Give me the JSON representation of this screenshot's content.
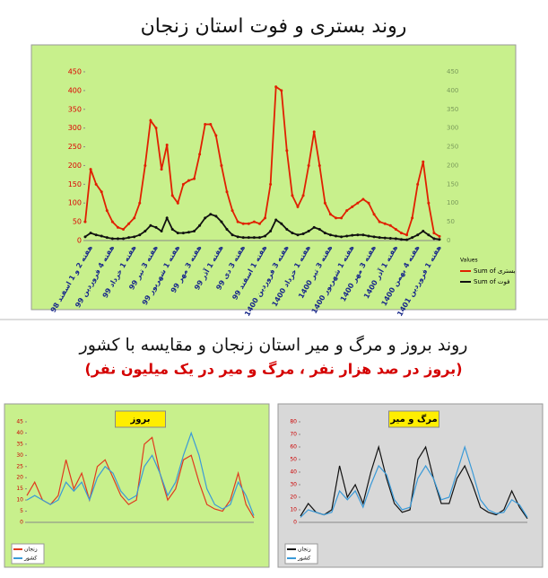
{
  "header": {
    "title": "روند بستری و فوت استان زنجان"
  },
  "section": {
    "title": "روند بروز و مرگ و میر استان زنجان و مقایسه با کشور",
    "subtitle": "(بروز در صد هزار نفر ، مرگ و میر در یک میلیون نفر)"
  },
  "chart_data": [
    {
      "type": "line",
      "background": "#c8f08c",
      "legend_title": "Values",
      "categories": [
        null,
        "هفته 2 و 1 اسفند 98",
        null,
        null,
        null,
        "هفته 4 فروردین 99",
        null,
        null,
        null,
        "هفته 1 خرداد 99",
        null,
        null,
        null,
        "هفته 3 تیر 99",
        null,
        null,
        null,
        "هفته 1 شهریور 99",
        null,
        null,
        null,
        "هفته 3 مهر 99",
        null,
        null,
        null,
        "هفته 1 آذر 99",
        null,
        null,
        null,
        "هفته 3 دی 99",
        null,
        null,
        null,
        "هفته 1 اسفند 99",
        null,
        null,
        null,
        "هفته 3 فروردین 1400",
        null,
        null,
        null,
        "هفته 1 خرداد 1400",
        null,
        null,
        null,
        "هفته 3 تیر 1400",
        null,
        null,
        null,
        "هفته 1 شهریور 1400",
        null,
        null,
        null,
        "هفته 3 مهر 1400",
        null,
        null,
        null,
        "هفته 1 آذر 1400",
        null,
        null,
        null,
        "هفته 4 بهمن 1400",
        null,
        null,
        null,
        "هفته 1 فروردین 1401"
      ],
      "ylim": [
        0,
        450
      ],
      "yticks": [
        0,
        50,
        100,
        150,
        200,
        250,
        300,
        350,
        400,
        450
      ],
      "y2lim": [
        0,
        450
      ],
      "y2ticks": [
        0,
        50,
        100,
        150,
        200,
        250,
        300,
        350,
        400,
        450
      ],
      "series": [
        {
          "name": "Sum of بستری",
          "color": "#e02000",
          "values": [
            50,
            190,
            150,
            130,
            80,
            50,
            35,
            30,
            45,
            60,
            100,
            200,
            320,
            300,
            190,
            255,
            120,
            100,
            150,
            160,
            165,
            230,
            310,
            310,
            280,
            200,
            130,
            80,
            50,
            45,
            45,
            50,
            45,
            60,
            150,
            410,
            400,
            240,
            120,
            90,
            120,
            200,
            290,
            200,
            100,
            70,
            60,
            60,
            80,
            90,
            100,
            110,
            100,
            70,
            50,
            45,
            40,
            30,
            20,
            15,
            60,
            150,
            210,
            100,
            20,
            11
          ]
        },
        {
          "name": "Sum of فوت",
          "color": "#111111",
          "values": [
            10,
            20,
            15,
            12,
            8,
            5,
            5,
            5,
            8,
            10,
            15,
            25,
            40,
            35,
            25,
            60,
            30,
            20,
            20,
            22,
            25,
            40,
            60,
            70,
            65,
            50,
            30,
            15,
            10,
            8,
            8,
            8,
            8,
            12,
            25,
            55,
            45,
            30,
            20,
            15,
            18,
            25,
            35,
            30,
            20,
            15,
            12,
            10,
            12,
            14,
            15,
            15,
            12,
            10,
            8,
            7,
            6,
            5,
            3,
            2,
            8,
            15,
            25,
            15,
            5,
            3
          ]
        }
      ]
    },
    {
      "type": "line",
      "background": "#c8f08c",
      "title": "بروز",
      "categories": [
        null,
        null,
        null,
        null,
        null,
        null,
        null,
        null,
        null,
        null,
        null,
        null,
        null,
        null,
        null,
        null,
        null,
        null,
        null,
        null,
        null,
        null,
        null,
        null,
        null,
        null,
        null,
        null,
        null,
        null
      ],
      "ylim": [
        0,
        45
      ],
      "yticks": [
        0,
        5,
        10,
        15,
        20,
        25,
        30,
        35,
        40,
        45
      ],
      "series": [
        {
          "name": "زنجان",
          "color": "#e03a1e",
          "values": [
            12,
            18,
            10,
            8,
            12,
            28,
            15,
            22,
            10,
            25,
            28,
            20,
            12,
            8,
            10,
            35,
            38,
            22,
            10,
            15,
            28,
            30,
            18,
            8,
            6,
            5,
            10,
            22,
            8,
            2
          ]
        },
        {
          "name": "کشور",
          "color": "#3a9ad8",
          "values": [
            10,
            12,
            10,
            8,
            10,
            18,
            14,
            18,
            10,
            20,
            25,
            22,
            14,
            10,
            12,
            25,
            30,
            22,
            12,
            18,
            30,
            40,
            30,
            15,
            8,
            6,
            8,
            18,
            12,
            3
          ]
        }
      ]
    },
    {
      "type": "line",
      "background": "#d8d8d8",
      "title": "مرگ و میر",
      "categories": [
        null,
        null,
        null,
        null,
        null,
        null,
        null,
        null,
        null,
        null,
        null,
        null,
        null,
        null,
        null,
        null,
        null,
        null,
        null,
        null,
        null,
        null,
        null,
        null,
        null,
        null,
        null,
        null,
        null,
        null
      ],
      "ylim": [
        0,
        80
      ],
      "yticks": [
        0,
        10,
        20,
        30,
        40,
        50,
        60,
        70,
        80
      ],
      "series": [
        {
          "name": "زنجان",
          "color": "#111111",
          "values": [
            5,
            15,
            8,
            6,
            10,
            45,
            20,
            30,
            15,
            40,
            60,
            35,
            15,
            8,
            10,
            50,
            60,
            35,
            15,
            15,
            35,
            45,
            30,
            12,
            8,
            6,
            10,
            25,
            12,
            3
          ]
        },
        {
          "name": "کشور",
          "color": "#3a9ad8",
          "values": [
            4,
            10,
            8,
            6,
            8,
            25,
            18,
            25,
            12,
            30,
            45,
            38,
            18,
            10,
            12,
            35,
            45,
            35,
            18,
            20,
            40,
            60,
            40,
            18,
            10,
            7,
            8,
            18,
            14,
            4
          ]
        }
      ]
    }
  ]
}
